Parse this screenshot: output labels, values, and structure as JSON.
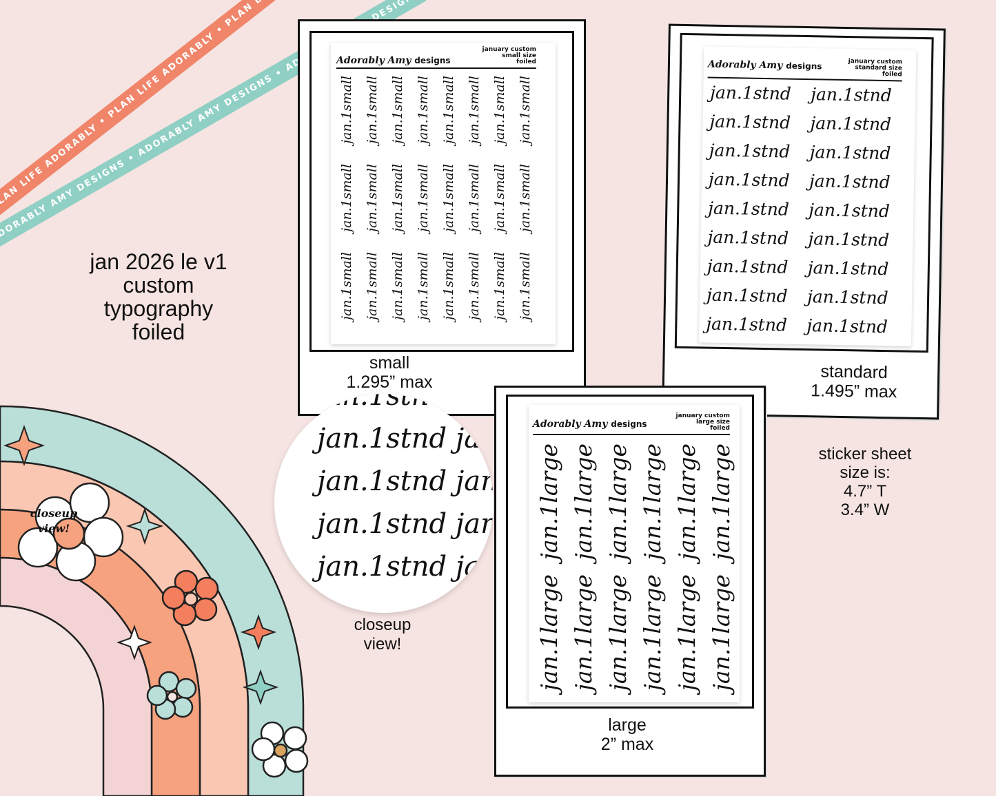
{
  "ribbons": {
    "orange_text": "PLAN LIFE ADORABLY • PLAN LIFE ADORABLY • PLAN LIFE ADORABLY •",
    "teal_text": "ADORABLY AMY DESIGNS • ADORABLY AMY DESIGNS • ADORABLY AMY DESIGNS •",
    "orange_color": "#f0856a",
    "teal_color": "#8fcfc4"
  },
  "product": {
    "title_lines": [
      "jan 2026 le v1",
      "custom",
      "typography",
      "foiled"
    ]
  },
  "brand": {
    "logo_script": "Adorably Amy",
    "logo_word": "designs"
  },
  "sheets": {
    "small": {
      "meta": [
        "january custom",
        "small size",
        "foiled"
      ],
      "sticker": "jan.1small",
      "label_lines": [
        "small",
        "1.295” max"
      ]
    },
    "standard": {
      "meta": [
        "january custom",
        "standard size",
        "foiled"
      ],
      "sticker": "jan.1stnd",
      "label_lines": [
        "standard",
        "1.495” max"
      ]
    },
    "large": {
      "meta": [
        "january custom",
        "large size",
        "foiled"
      ],
      "sticker": "jan.1large",
      "label_lines": [
        "large",
        "2” max"
      ]
    }
  },
  "closeup": {
    "sticker": "jan.1stnd",
    "label_lines": [
      "closeup",
      "view!"
    ],
    "badge_lines": [
      "closeup",
      "view!"
    ]
  },
  "size_info": {
    "lines": [
      "sticker sheet",
      "size is:",
      "4.7” T",
      "3.4” W"
    ]
  }
}
